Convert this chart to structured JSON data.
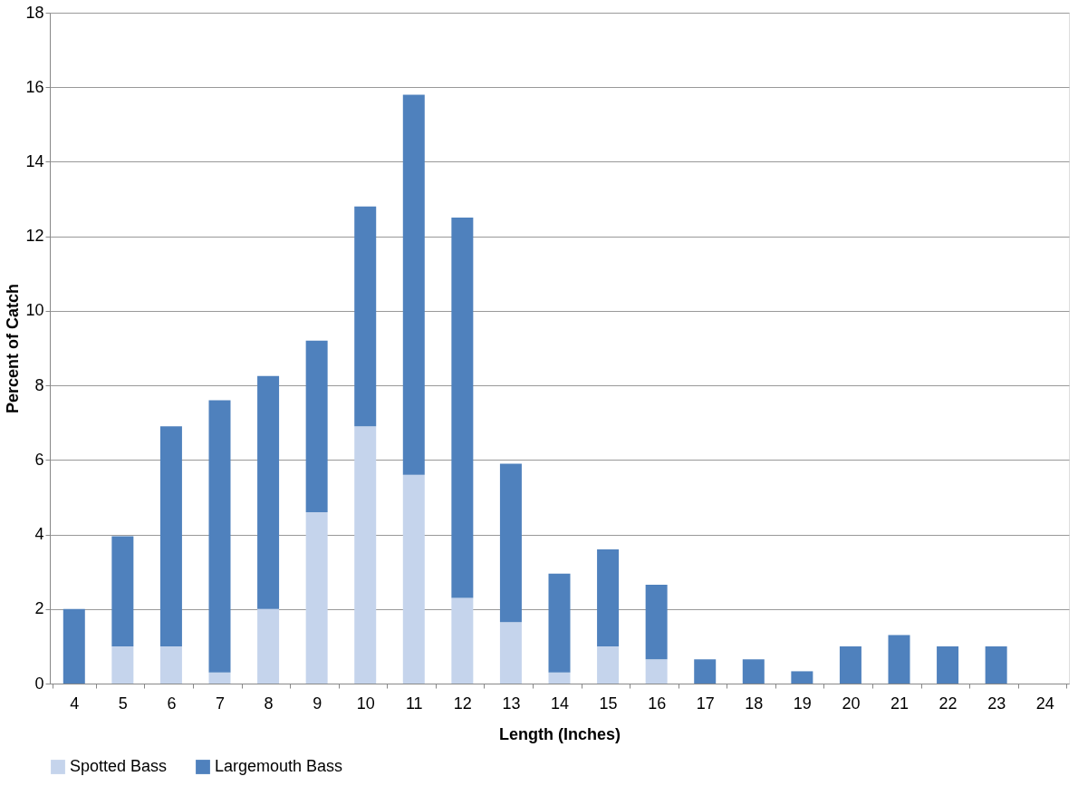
{
  "chart_data": {
    "type": "bar",
    "stacked": true,
    "xlabel": "Length (Inches)",
    "ylabel": "Percent of Catch",
    "categories": [
      "4",
      "5",
      "6",
      "7",
      "8",
      "9",
      "10",
      "11",
      "12",
      "13",
      "14",
      "15",
      "16",
      "17",
      "18",
      "19",
      "20",
      "21",
      "22",
      "23",
      "24"
    ],
    "series": [
      {
        "name": "Spotted Bass",
        "color": "#c5d4ec",
        "values": [
          0,
          1.0,
          1.0,
          0.3,
          2.0,
          4.6,
          6.9,
          5.6,
          2.3,
          1.65,
          0.3,
          1.0,
          0.65,
          0,
          0,
          0,
          0,
          0,
          0,
          0,
          0
        ]
      },
      {
        "name": "Largemouth Bass",
        "color": "#4f81bd",
        "values": [
          2.0,
          2.95,
          5.9,
          7.3,
          6.25,
          4.6,
          5.9,
          10.2,
          10.2,
          4.25,
          2.65,
          2.6,
          2.0,
          0.65,
          0.65,
          0.33,
          1.0,
          1.3,
          1.0,
          1.0,
          0
        ]
      }
    ],
    "ylim": [
      0,
      18
    ],
    "yticks": [
      0,
      2,
      4,
      6,
      8,
      10,
      12,
      14,
      16,
      18
    ],
    "grid": "y",
    "legend": "bottom"
  }
}
